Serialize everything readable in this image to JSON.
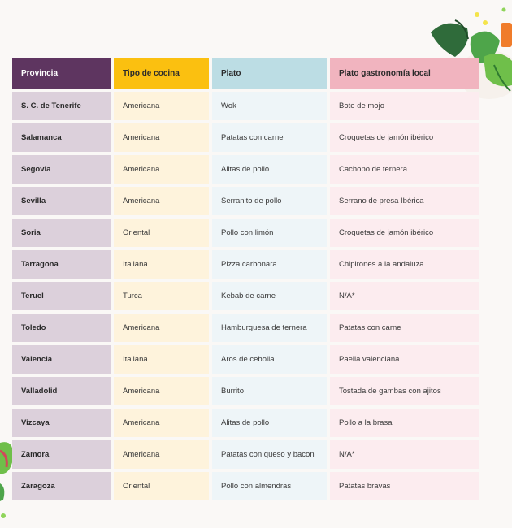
{
  "headers": [
    "Provincia",
    "Tipo de cocina",
    "Plato",
    "Plato gastronomía local"
  ],
  "rows": [
    [
      "S. C. de Tenerife",
      "Americana",
      "Wok",
      "Bote de mojo"
    ],
    [
      "Salamanca",
      "Americana",
      "Patatas con carne",
      "Croquetas de jamón ibérico"
    ],
    [
      "Segovia",
      "Americana",
      "Alitas de pollo",
      "Cachopo de ternera"
    ],
    [
      "Sevilla",
      "Americana",
      "Serranito de pollo",
      "Serrano de presa Ibérica"
    ],
    [
      "Soria",
      "Oriental",
      "Pollo con limón",
      "Croquetas de jamón ibérico"
    ],
    [
      "Tarragona",
      "Italiana",
      "Pizza carbonara",
      "Chipirones a la andaluza"
    ],
    [
      "Teruel",
      "Turca",
      "Kebab de carne",
      "N/A*"
    ],
    [
      "Toledo",
      "Americana",
      "Hamburguesa de ternera",
      "Patatas con carne"
    ],
    [
      "Valencia",
      "Italiana",
      "Aros de cebolla",
      "Paella valenciana"
    ],
    [
      "Valladolid",
      "Americana",
      "Burrito",
      "Tostada de gambas con ajitos"
    ],
    [
      "Vizcaya",
      "Americana",
      "Alitas de pollo",
      "Pollo a la brasa"
    ],
    [
      "Zamora",
      "Americana",
      "Patatas con queso y bacon",
      "N/A*"
    ],
    [
      "Zaragoza",
      "Oriental",
      "Pollo con almendras",
      "Patatas bravas"
    ]
  ],
  "colors": {
    "provincia_header": "#5e3560",
    "tipo_header": "#fbc010",
    "plato_header": "#bcdde4",
    "local_header": "#f1b4bf"
  },
  "decorations": [
    "salad-bowl-icon",
    "lettuce-icon"
  ]
}
